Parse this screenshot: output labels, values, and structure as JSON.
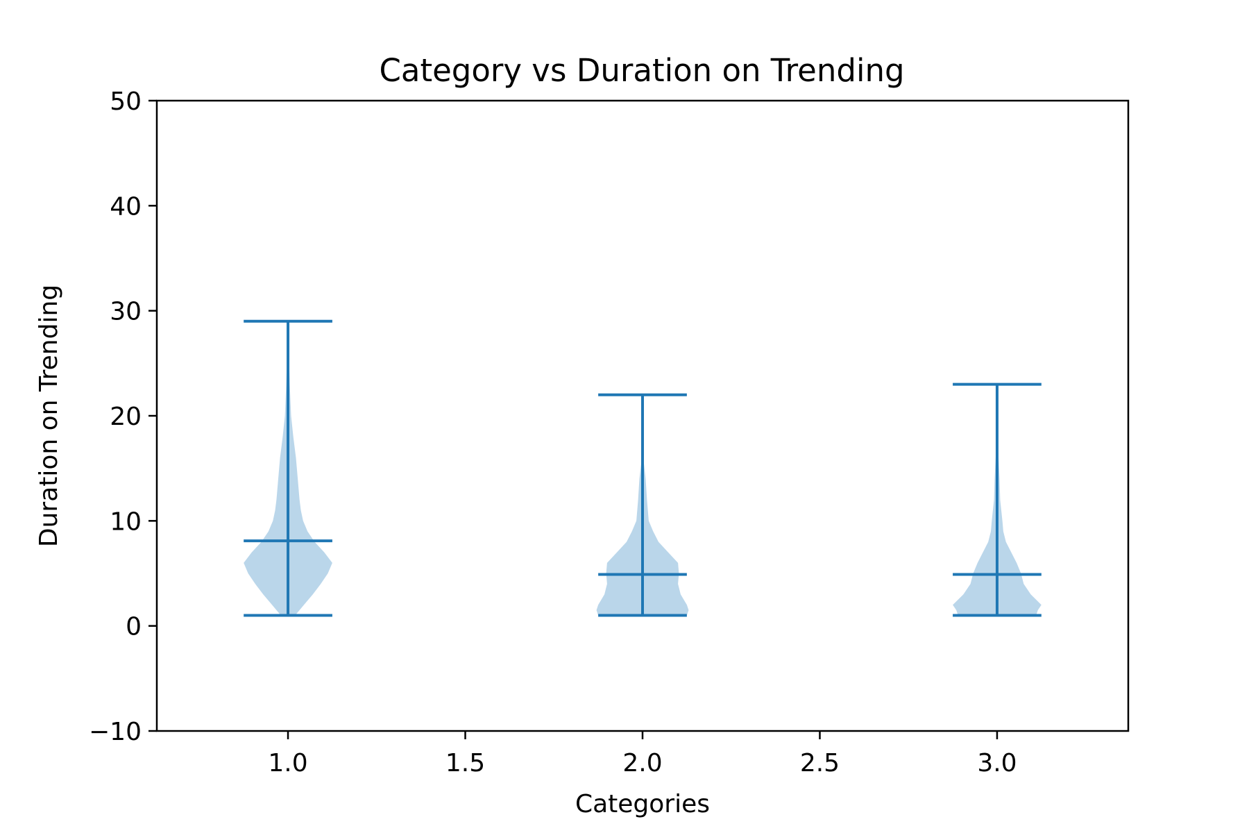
{
  "chart_data": {
    "type": "violin",
    "title": "Category vs Duration on Trending",
    "xlabel": "Categories",
    "ylabel": "Duration on Trending",
    "xlim": [
      0.63,
      3.37
    ],
    "ylim": [
      -10,
      50
    ],
    "xticks": [
      1.0,
      1.5,
      2.0,
      2.5,
      3.0
    ],
    "xtick_labels": [
      "1.0",
      "1.5",
      "2.0",
      "2.5",
      "3.0"
    ],
    "yticks": [
      -10,
      0,
      10,
      20,
      30,
      40,
      50
    ],
    "ytick_labels": [
      "−10",
      "0",
      "10",
      "20",
      "30",
      "40",
      "50"
    ],
    "grid": false,
    "colors": {
      "body": "#bad6ea",
      "lines": "#1f77b4"
    },
    "violins": [
      {
        "position": 1.0,
        "min": 1,
        "max": 29,
        "mean": 8.1,
        "density": [
          [
            1,
            0.08
          ],
          [
            2,
            0.18
          ],
          [
            3,
            0.28
          ],
          [
            4,
            0.37
          ],
          [
            5,
            0.45
          ],
          [
            6,
            0.5
          ],
          [
            7,
            0.41
          ],
          [
            8,
            0.3
          ],
          [
            9,
            0.22
          ],
          [
            10,
            0.17
          ],
          [
            11,
            0.145
          ],
          [
            12,
            0.13
          ],
          [
            14,
            0.11
          ],
          [
            16,
            0.09
          ],
          [
            18,
            0.06
          ],
          [
            20,
            0.035
          ],
          [
            23,
            0.02
          ],
          [
            26,
            0.01
          ],
          [
            29,
            0.004
          ]
        ]
      },
      {
        "position": 2.0,
        "min": 1,
        "max": 22,
        "mean": 4.9,
        "density": [
          [
            1,
            0.5
          ],
          [
            1.5,
            0.52
          ],
          [
            2,
            0.5
          ],
          [
            3,
            0.43
          ],
          [
            4,
            0.4
          ],
          [
            5,
            0.41
          ],
          [
            6,
            0.4
          ],
          [
            7,
            0.29
          ],
          [
            8,
            0.18
          ],
          [
            9,
            0.12
          ],
          [
            10,
            0.07
          ],
          [
            12,
            0.05
          ],
          [
            14,
            0.035
          ],
          [
            16,
            0.008
          ],
          [
            18,
            0.005
          ],
          [
            22,
            0.002
          ]
        ]
      },
      {
        "position": 3.0,
        "min": 1,
        "max": 23,
        "mean": 4.9,
        "density": [
          [
            1,
            0.44
          ],
          [
            1.5,
            0.46
          ],
          [
            2,
            0.5
          ],
          [
            3,
            0.38
          ],
          [
            4,
            0.3
          ],
          [
            5,
            0.27
          ],
          [
            6,
            0.22
          ],
          [
            7,
            0.16
          ],
          [
            8,
            0.1
          ],
          [
            9,
            0.07
          ],
          [
            10,
            0.06
          ],
          [
            12,
            0.035
          ],
          [
            14,
            0.028
          ],
          [
            16,
            0.016
          ],
          [
            18,
            0.007
          ],
          [
            20,
            0.004
          ],
          [
            23,
            0.002
          ]
        ]
      }
    ]
  }
}
